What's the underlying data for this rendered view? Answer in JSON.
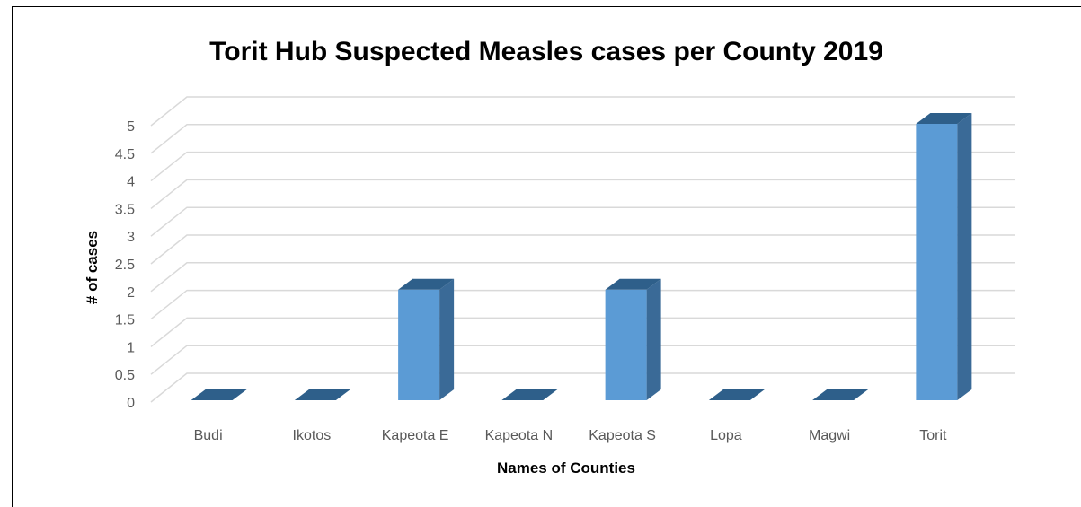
{
  "chart_data": {
    "type": "bar",
    "title": "Torit Hub Suspected Measles cases per County 2019",
    "xlabel": "Names of Counties",
    "ylabel": "# of cases",
    "categories": [
      "Budi",
      "Ikotos",
      "Kapeota E",
      "Kapeota N",
      "Kapeota S",
      "Lopa",
      "Magwi",
      "Torit"
    ],
    "values": [
      0,
      0,
      2,
      0,
      2,
      0,
      0,
      5
    ],
    "ylim": [
      0,
      5
    ],
    "yticks": [
      "0",
      "0.5",
      "1",
      "1.5",
      "2",
      "2.5",
      "3",
      "3.5",
      "4",
      "4.5",
      "5"
    ],
    "grid": true,
    "style": "3d-column",
    "colors": {
      "bar_front": "#5b9bd5",
      "bar_side": "#3a6a97",
      "bar_top": "#2e5f8a"
    }
  }
}
